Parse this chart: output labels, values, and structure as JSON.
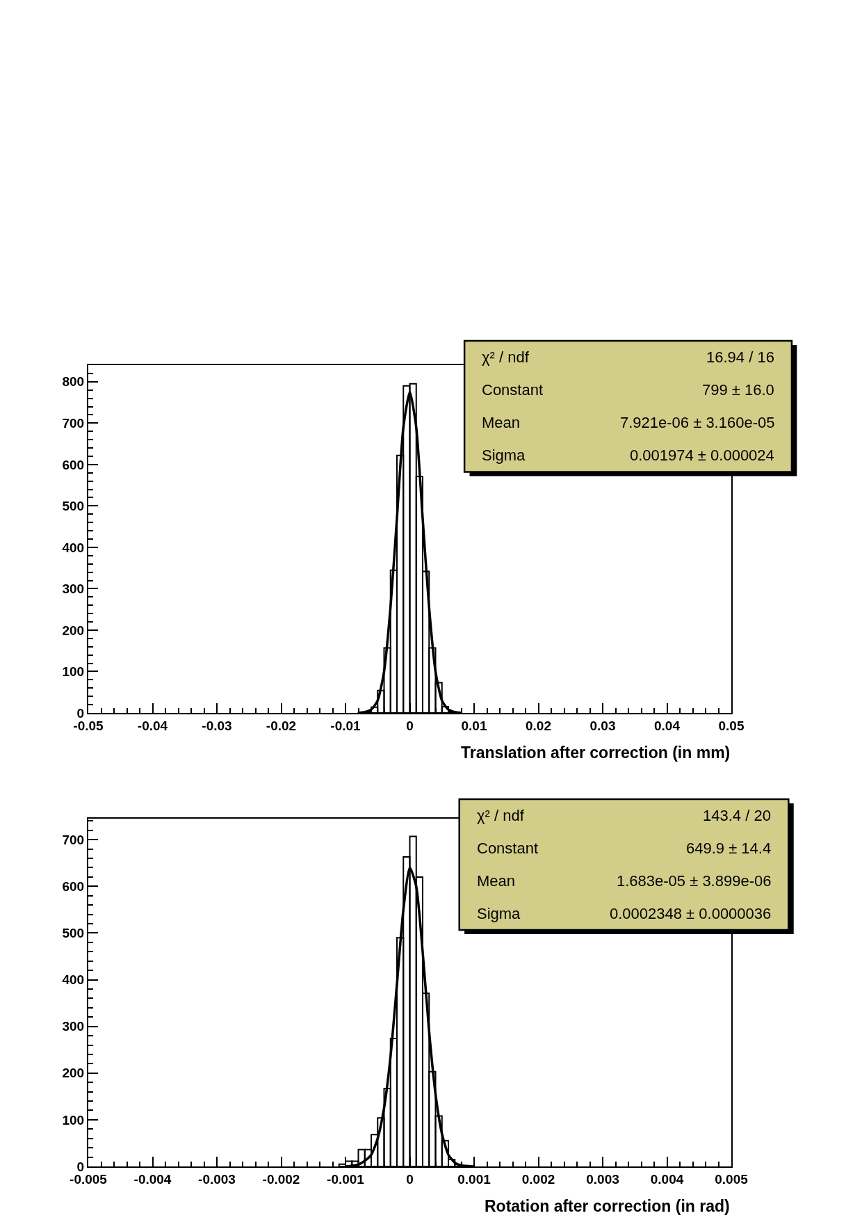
{
  "chart_data": [
    {
      "type": "histogram",
      "xlabel": "Translation after correction (in mm)",
      "xlim": [
        -0.05,
        0.05
      ],
      "xticks": [
        -0.05,
        -0.04,
        -0.03,
        -0.02,
        -0.01,
        0,
        0.01,
        0.02,
        0.03,
        0.04,
        0.05
      ],
      "ylim": [
        0,
        840
      ],
      "yticks": [
        0,
        100,
        200,
        300,
        400,
        500,
        600,
        700,
        800
      ],
      "grid": false,
      "series": [
        {
          "color": "#000000",
          "bins": [
            -0.008,
            -0.007,
            -0.006,
            -0.005,
            -0.004,
            -0.003,
            -0.002,
            -0.001,
            0,
            0.001,
            0.002,
            0.003,
            0.004,
            0.005,
            0.006,
            0.007,
            0.008
          ],
          "values": [
            1,
            3,
            14,
            54,
            157,
            345,
            622,
            790,
            795,
            571,
            342,
            157,
            73,
            15,
            3,
            1
          ]
        },
        {
          "type": "line",
          "color": "#000000",
          "x": [
            -0.008,
            -0.007,
            -0.006,
            -0.005,
            -0.004,
            -0.003,
            -0.002,
            -0.001,
            0,
            0.001,
            0.002,
            0.003,
            0.004,
            0.005,
            0.006,
            0.007,
            0.008
          ],
          "values": [
            0,
            2,
            8,
            30,
            100,
            255,
            470,
            690,
            775,
            690,
            470,
            255,
            100,
            30,
            8,
            2,
            0
          ]
        }
      ],
      "annotations": [
        "χ² / ndf",
        "16.94 / 16",
        "Constant",
        "799 ± 16.0",
        "Mean",
        "7.921e-06 ± 3.160e-05",
        "Sigma",
        "0.001974 ± 0.000024"
      ]
    },
    {
      "type": "histogram",
      "xlabel": "Rotation after correction (in rad)",
      "xlim": [
        -0.005,
        0.005
      ],
      "xticks": [
        -0.005,
        -0.004,
        -0.003,
        -0.002,
        -0.001,
        0,
        0.001,
        0.002,
        0.003,
        0.004,
        0.005
      ],
      "ylim": [
        0,
        745
      ],
      "yticks": [
        0,
        100,
        200,
        300,
        400,
        500,
        600,
        700
      ],
      "grid": false,
      "series": [
        {
          "color": "#000000",
          "bins": [
            -0.0011,
            -0.001,
            -0.0009,
            -0.0008,
            -0.0007,
            -0.0006,
            -0.0005,
            -0.0004,
            -0.0003,
            -0.0002,
            -0.0001,
            0,
            0.0001,
            0.0002,
            0.0003,
            0.0004,
            0.0005,
            0.0006,
            0.0007,
            0.0008,
            0.0009
          ],
          "values": [
            5,
            11,
            11,
            36,
            36,
            68,
            104,
            167,
            274,
            490,
            663,
            707,
            620,
            371,
            203,
            108,
            55,
            15,
            4,
            2
          ]
        },
        {
          "type": "line",
          "color": "#000000",
          "x": [
            -0.001,
            -0.0008,
            -0.0007,
            -0.0006,
            -0.0005,
            -0.0004,
            -0.0003,
            -0.0002,
            -0.0001,
            0,
            0.0001,
            0.0002,
            0.0003,
            0.0004,
            0.0005,
            0.0006,
            0.0007,
            0.0008,
            0.001
          ],
          "values": [
            0,
            4,
            12,
            25,
            60,
            125,
            235,
            390,
            550,
            640,
            600,
            460,
            290,
            155,
            70,
            25,
            8,
            2,
            0
          ]
        }
      ],
      "annotations": [
        "χ² / ndf",
        "143.4 / 20",
        "Constant",
        "649.9 ± 14.4",
        "Mean",
        "1.683e-05 ± 3.899e-06",
        "Sigma",
        "0.0002348 ± 0.0000036"
      ]
    }
  ]
}
